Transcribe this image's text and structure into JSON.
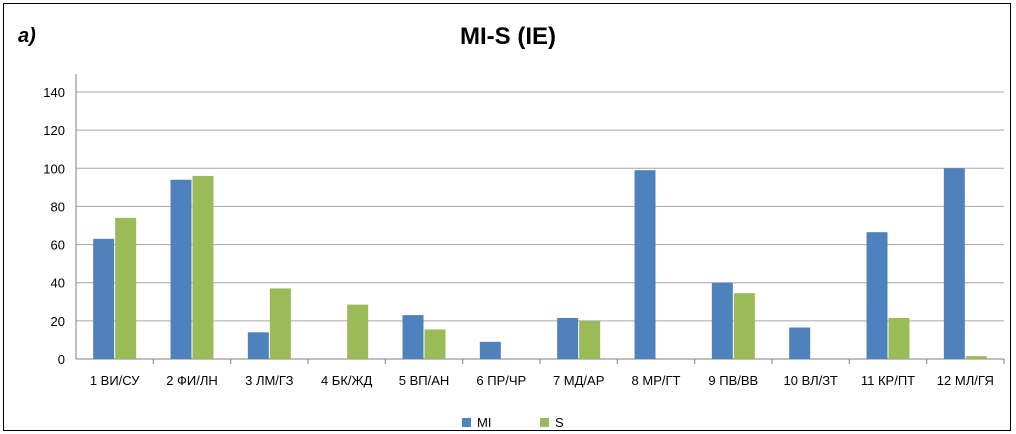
{
  "panel_label": "a)",
  "colors": {
    "MI": "#4F81BD",
    "S": "#9BBB59",
    "grid": "#A6A6A6",
    "axis": "#7F7F7F"
  },
  "chart_data": {
    "type": "bar",
    "title": "MI-S (IE)",
    "xlabel": "",
    "ylabel": "",
    "ylim": [
      0,
      140
    ],
    "yticks": [
      0,
      20,
      40,
      60,
      80,
      100,
      120,
      140
    ],
    "grid": true,
    "legend_position": "bottom",
    "categories": [
      "1 ВИ/СУ",
      "2 ФИ/ЛН",
      "3 ЛМ/ГЗ",
      "4 БК/ЖД",
      "5 ВП/АН",
      "6 ПР/ЧР",
      "7 МД/АР",
      "8 МР/ГТ",
      "9 ПВ/ВВ",
      "10 ВЛ/ЗТ",
      "11 КР/ПТ",
      "12 МЛ/ГЯ"
    ],
    "series": [
      {
        "name": "MI",
        "values": [
          63,
          94,
          14,
          0,
          23,
          9,
          21.5,
          99,
          40,
          16.5,
          66.5,
          100
        ]
      },
      {
        "name": "S",
        "values": [
          74,
          96,
          37,
          28.5,
          15.5,
          0,
          20,
          0,
          34.5,
          0,
          21.5,
          1.5
        ]
      }
    ]
  }
}
